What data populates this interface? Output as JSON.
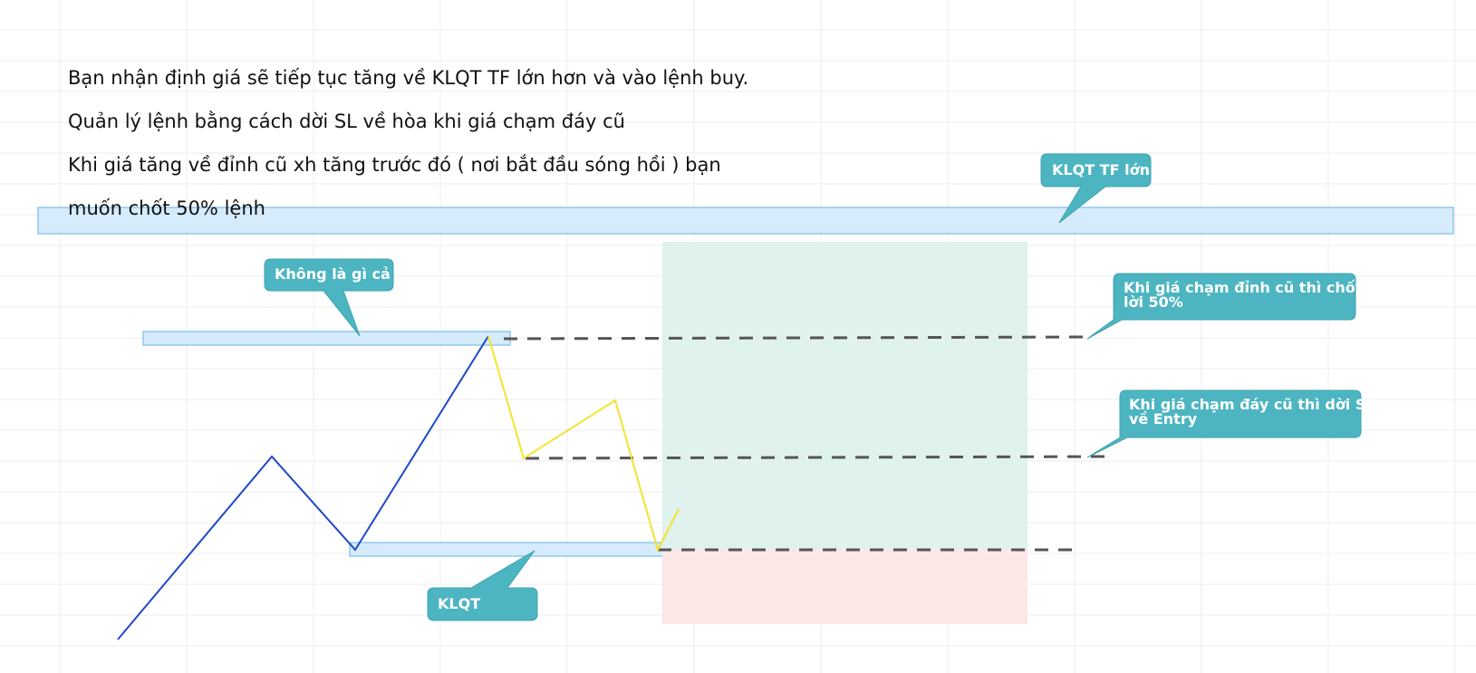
{
  "note_lines": [
    "Bạn nhận định giá sẽ tiếp tục tăng về KLQT TF lớn hơn và vào lệnh buy.",
    "Quản lý lệnh bằng cách dời SL về hòa khi giá chạm đáy cũ",
    "Khi giá tăng về đỉnh cũ xh tăng trước đó ( nơi bắt đầu sóng hồi ) bạn",
    "muốn chốt 50% lệnh"
  ],
  "callouts": {
    "klqt_tf_lon": {
      "lines": [
        "KLQT TF lớn"
      ]
    },
    "khong_la_gi_ca": {
      "lines": [
        "Không là gì cả"
      ]
    },
    "chot_loi": {
      "lines": [
        "Khi giá chạm đỉnh cũ thì chốt",
        "lời 50%"
      ]
    },
    "doi_sl": {
      "lines": [
        "Khi giá chạm đáy cũ thì dời SL",
        "về Entry"
      ]
    },
    "klqt": {
      "lines": [
        "KLQT"
      ]
    }
  },
  "colors": {
    "grid": "#ececec",
    "zone_fill": "#d6ebfb",
    "zone_stroke": "#8ec8ee",
    "profit_fill": "#dff2ee",
    "loss_fill": "#fde6e6",
    "callout_fill": "#4db5c1",
    "callout_stroke": "#3ea3ae",
    "impulse_line": "#1f47c9",
    "pullback_line": "#f5e32c",
    "dashed_level": "#555555"
  }
}
